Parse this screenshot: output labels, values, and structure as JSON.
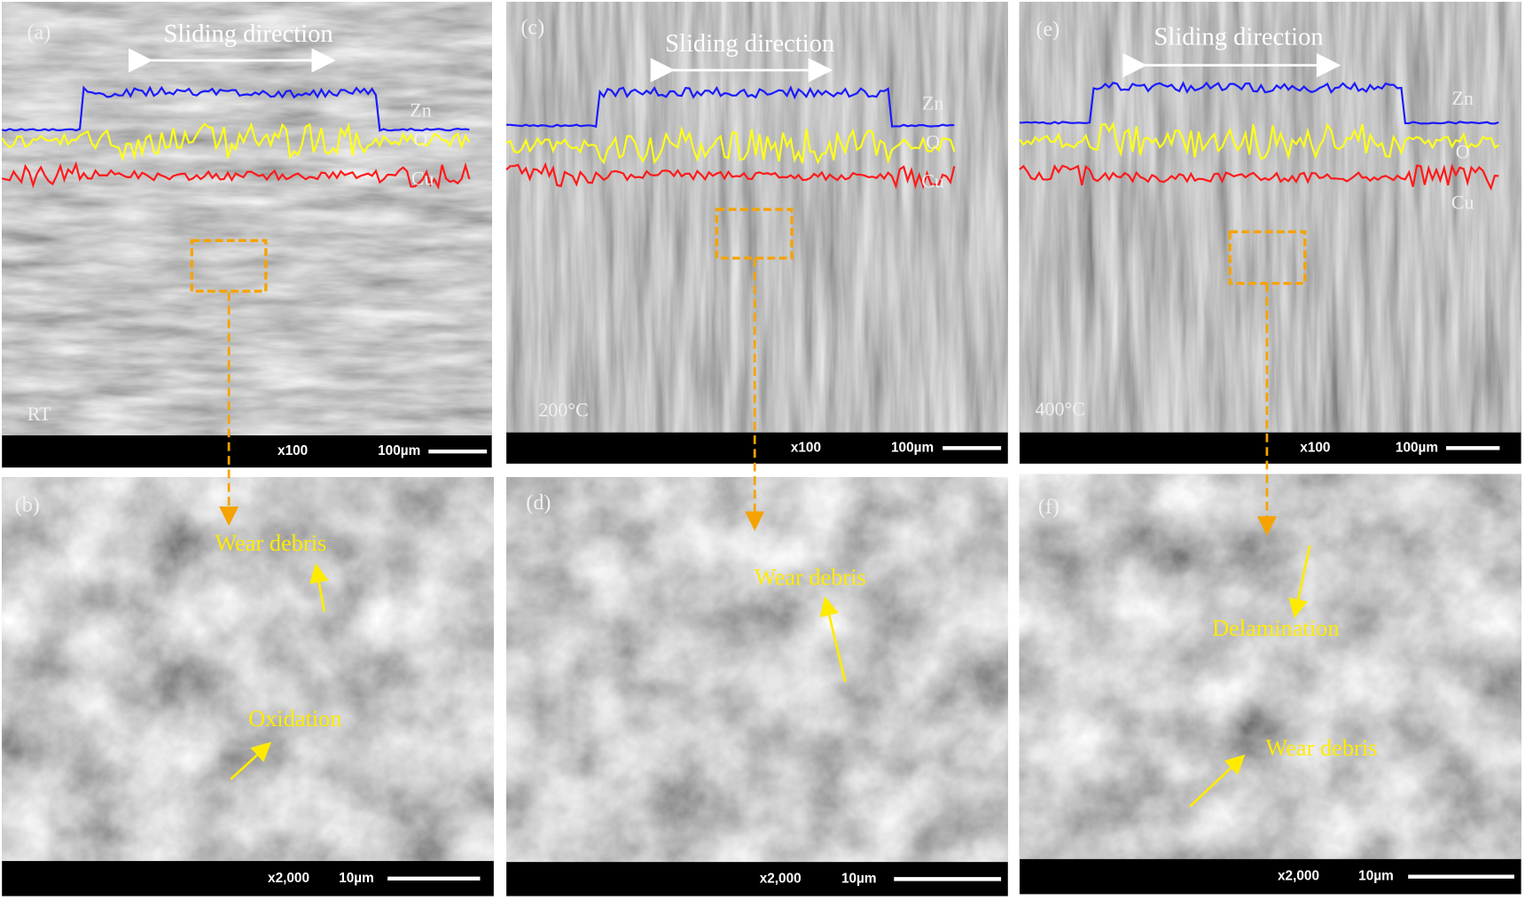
{
  "panels": [
    {
      "label": "(a)",
      "direction": "Sliding direction",
      "elements": [
        "Zn",
        "O",
        "Cu"
      ],
      "temperature": "RT",
      "magnification": "x100",
      "scale": "100µm"
    },
    {
      "label": "(c)",
      "direction": "Sliding direction",
      "elements": [
        "Zn",
        "O",
        "Cu"
      ],
      "temperature": "200°C",
      "magnification": "x100",
      "scale": "100µm"
    },
    {
      "label": "(e)",
      "direction": "Sliding direction",
      "elements": [
        "Zn",
        "O",
        "Cu"
      ],
      "temperature": "400°C",
      "magnification": "x100",
      "scale": "100µm"
    },
    {
      "label": "(b)",
      "annotations": [
        "Wear debris",
        "Oxidation"
      ],
      "magnification": "x2,000",
      "scale": "10µm"
    },
    {
      "label": "(d)",
      "annotations": [
        "Wear debris"
      ],
      "magnification": "x2,000",
      "scale": "10µm"
    },
    {
      "label": "(f)",
      "annotations": [
        "Delamination",
        "Wear debris"
      ],
      "magnification": "x2,000",
      "scale": "10µm"
    }
  ]
}
